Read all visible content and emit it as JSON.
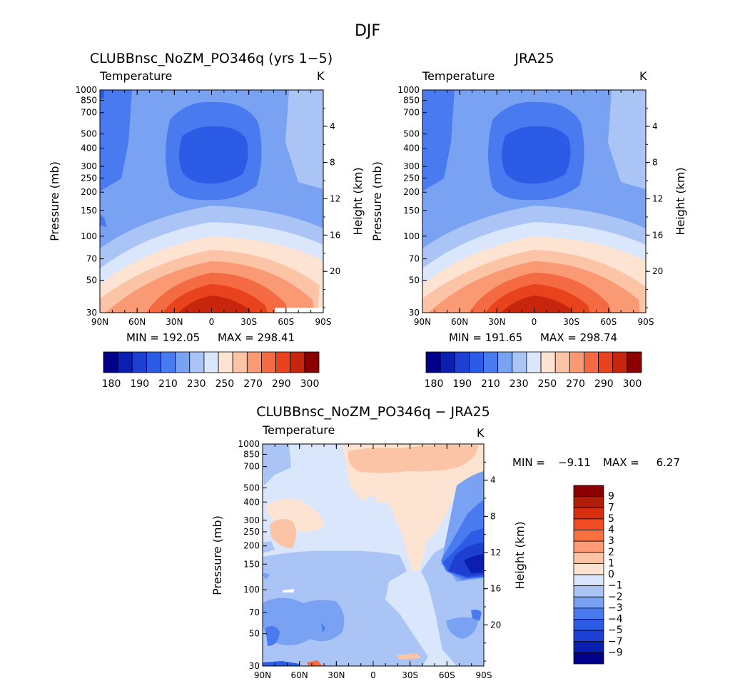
{
  "figure": {
    "title": "DJF"
  },
  "chart_data": [
    {
      "type": "heatmap",
      "title": "CLUBBnsc_NoZM_PO346q (yrs 1−5)",
      "field": "Temperature",
      "units": "K",
      "xlabel": "",
      "ylabel": "Pressure (mb)",
      "y2label": "Height (km)",
      "x_ticks": [
        "90N",
        "60N",
        "30N",
        "0",
        "30S",
        "60S",
        "90S"
      ],
      "y_ticks": [
        30,
        50,
        70,
        100,
        150,
        200,
        250,
        300,
        400,
        500,
        700,
        850,
        1000
      ],
      "y2_ticks": [
        20,
        16,
        12,
        8,
        4
      ],
      "ylim": [
        1000,
        30
      ],
      "y_scale": "log",
      "min_label": "MIN = 192.05",
      "max_label": "MAX = 298.41",
      "min": 192.05,
      "max": 298.41,
      "colorbar": {
        "orientation": "horizontal",
        "levels": [
          180,
          190,
          200,
          210,
          220,
          230,
          240,
          250,
          260,
          270,
          280,
          290,
          300
        ],
        "labels": [
          "180",
          "190",
          "210",
          "230",
          "250",
          "270",
          "290",
          "300"
        ],
        "colors": [
          "#00008b",
          "#0a1fb0",
          "#1d3fd2",
          "#2c5be6",
          "#4a7af0",
          "#7aa2f3",
          "#abc4f6",
          "#d9e6fb",
          "#fde4d2",
          "#fcc4a6",
          "#f99a74",
          "#f46b43",
          "#e8431d",
          "#c8260c",
          "#8b0000"
        ]
      }
    },
    {
      "type": "heatmap",
      "title": "JRA25",
      "field": "Temperature",
      "units": "K",
      "xlabel": "",
      "ylabel": "Pressure (mb)",
      "y2label": "Height (km)",
      "x_ticks": [
        "90N",
        "60N",
        "30N",
        "0",
        "30S",
        "60S",
        "90S"
      ],
      "y_ticks": [
        30,
        50,
        70,
        100,
        150,
        200,
        250,
        300,
        400,
        500,
        700,
        850,
        1000
      ],
      "y2_ticks": [
        20,
        16,
        12,
        8,
        4
      ],
      "ylim": [
        1000,
        30
      ],
      "y_scale": "log",
      "min_label": "MIN = 191.65",
      "max_label": "MAX = 298.74",
      "min": 191.65,
      "max": 298.74,
      "colorbar": {
        "orientation": "horizontal",
        "levels": [
          180,
          190,
          200,
          210,
          220,
          230,
          240,
          250,
          260,
          270,
          280,
          290,
          300
        ],
        "labels": [
          "180",
          "190",
          "210",
          "230",
          "250",
          "270",
          "290",
          "300"
        ],
        "colors": [
          "#00008b",
          "#0a1fb0",
          "#1d3fd2",
          "#2c5be6",
          "#4a7af0",
          "#7aa2f3",
          "#abc4f6",
          "#d9e6fb",
          "#fde4d2",
          "#fcc4a6",
          "#f99a74",
          "#f46b43",
          "#e8431d",
          "#c8260c",
          "#8b0000"
        ]
      }
    },
    {
      "type": "heatmap",
      "title": "CLUBBnsc_NoZM_PO346q − JRA25",
      "field": "Temperature",
      "units": "K",
      "xlabel": "",
      "ylabel": "Pressure (mb)",
      "y2label": "Height (km)",
      "x_ticks": [
        "90N",
        "60N",
        "30N",
        "0",
        "30S",
        "60S",
        "90S"
      ],
      "y_ticks": [
        30,
        50,
        70,
        100,
        150,
        200,
        250,
        300,
        400,
        500,
        700,
        850,
        1000
      ],
      "y2_ticks": [
        20,
        16,
        12,
        8,
        4
      ],
      "ylim": [
        1000,
        30
      ],
      "y_scale": "log",
      "min_label": "MIN =",
      "max_label": "MAX =",
      "min_value": "−9.11",
      "max_value": "6.27",
      "min": -9.11,
      "max": 6.27,
      "colorbar": {
        "orientation": "vertical",
        "levels": [
          -9,
          -7,
          -5,
          -4,
          -3,
          -2,
          -1,
          0,
          1,
          2,
          3,
          4,
          5,
          7,
          9
        ],
        "labels": [
          "9",
          "7",
          "5",
          "4",
          "3",
          "2",
          "1",
          "0",
          "−1",
          "−2",
          "−3",
          "−4",
          "−5",
          "−7",
          "−9"
        ],
        "colors": [
          "#8b0000",
          "#b01d0a",
          "#d8300f",
          "#f04d22",
          "#f9713f",
          "#fb9a74",
          "#fdc4a6",
          "#fde4d2",
          "#d9e6fb",
          "#abc4f6",
          "#7aa2f3",
          "#4a7af0",
          "#2c5be6",
          "#1d3fd2",
          "#0a1fb0",
          "#00008b"
        ]
      }
    }
  ]
}
